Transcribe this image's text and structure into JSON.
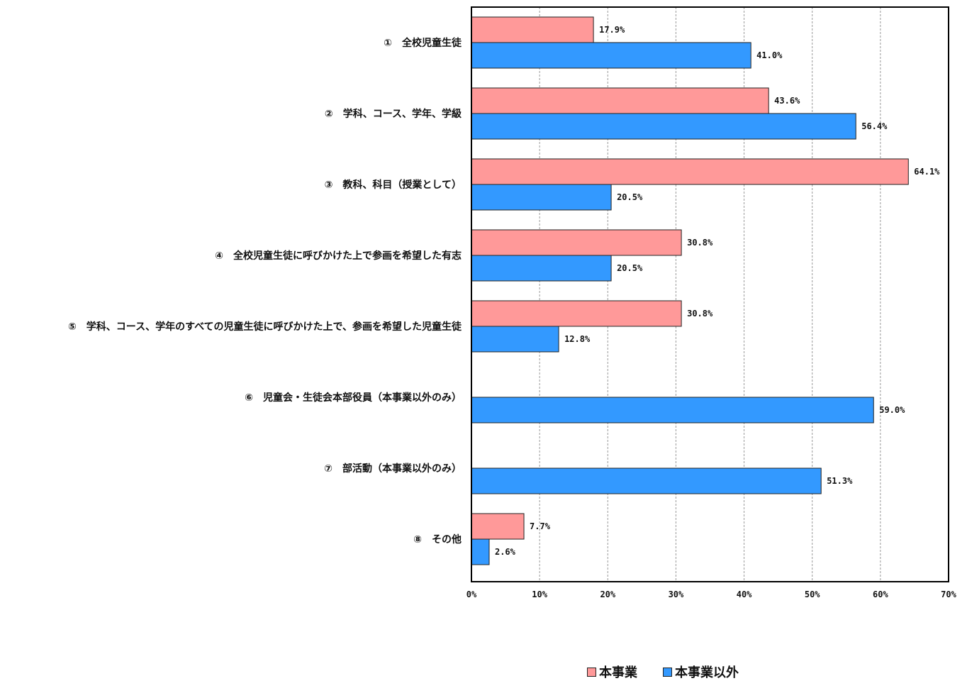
{
  "chart_data": {
    "type": "bar",
    "orientation": "horizontal",
    "categories": [
      "①　全校児童生徒",
      "②　学科、コース、学年、学級",
      "③　教科、科目（授業として）",
      "④　全校児童生徒に呼びかけた上で参画を希望した有志",
      "⑤　学科、コース、学年のすべての児童生徒に呼びかけた上で、参画を希望した児童生徒",
      "⑥　児童会・生徒会本部役員（本事業以外のみ）",
      "⑦　部活動（本事業以外のみ）",
      "⑧　その他"
    ],
    "series": [
      {
        "name": "本事業",
        "color": "#ff9999",
        "values": [
          17.9,
          43.6,
          64.1,
          30.8,
          30.8,
          null,
          null,
          7.7
        ],
        "labels": [
          "17.9%",
          "43.6%",
          "64.1%",
          "30.8%",
          "30.8%",
          null,
          null,
          "7.7%"
        ]
      },
      {
        "name": "本事業以外",
        "color": "#3399ff",
        "values": [
          41.0,
          56.4,
          20.5,
          20.5,
          12.8,
          59.0,
          51.3,
          2.6
        ],
        "labels": [
          "41.0%",
          "56.4%",
          "20.5%",
          "20.5%",
          "12.8%",
          "59.0%",
          "51.3%",
          "2.6%"
        ]
      }
    ],
    "xlim": [
      0,
      70
    ],
    "xticks": [
      "0%",
      "10%",
      "20%",
      "30%",
      "40%",
      "50%",
      "60%",
      "70%"
    ],
    "xlabel": "",
    "ylabel": "",
    "grid": "vertical dashed",
    "legend": "bottom-center"
  }
}
